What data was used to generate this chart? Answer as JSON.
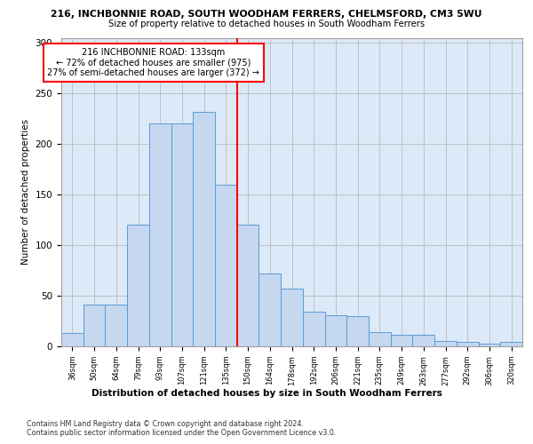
{
  "title1": "216, INCHBONNIE ROAD, SOUTH WOODHAM FERRERS, CHELMSFORD, CM3 5WU",
  "title2": "Size of property relative to detached houses in South Woodham Ferrers",
  "xlabel": "Distribution of detached houses by size in South Woodham Ferrers",
  "ylabel": "Number of detached properties",
  "footer1": "Contains HM Land Registry data © Crown copyright and database right 2024.",
  "footer2": "Contains public sector information licensed under the Open Government Licence v3.0.",
  "bar_labels": [
    "36sqm",
    "50sqm",
    "64sqm",
    "79sqm",
    "93sqm",
    "107sqm",
    "121sqm",
    "135sqm",
    "150sqm",
    "164sqm",
    "178sqm",
    "192sqm",
    "206sqm",
    "221sqm",
    "235sqm",
    "249sqm",
    "263sqm",
    "277sqm",
    "292sqm",
    "306sqm",
    "320sqm"
  ],
  "bar_values": [
    13,
    41,
    41,
    120,
    220,
    220,
    232,
    160,
    120,
    72,
    57,
    34,
    31,
    30,
    14,
    11,
    11,
    5,
    4,
    3,
    4
  ],
  "bar_color": "#c5d8f0",
  "bar_edge_color": "#5b9bd5",
  "vline_pos": 7.5,
  "vline_color": "red",
  "annotation_text": "216 INCHBONNIE ROAD: 133sqm\n← 72% of detached houses are smaller (975)\n27% of semi-detached houses are larger (372) →",
  "annotation_box_color": "white",
  "annotation_box_edge": "red",
  "ylim": [
    0,
    305
  ],
  "yticks": [
    0,
    50,
    100,
    150,
    200,
    250,
    300
  ],
  "grid_color": "#c0c0c0",
  "plot_bg_color": "#dce9f8"
}
